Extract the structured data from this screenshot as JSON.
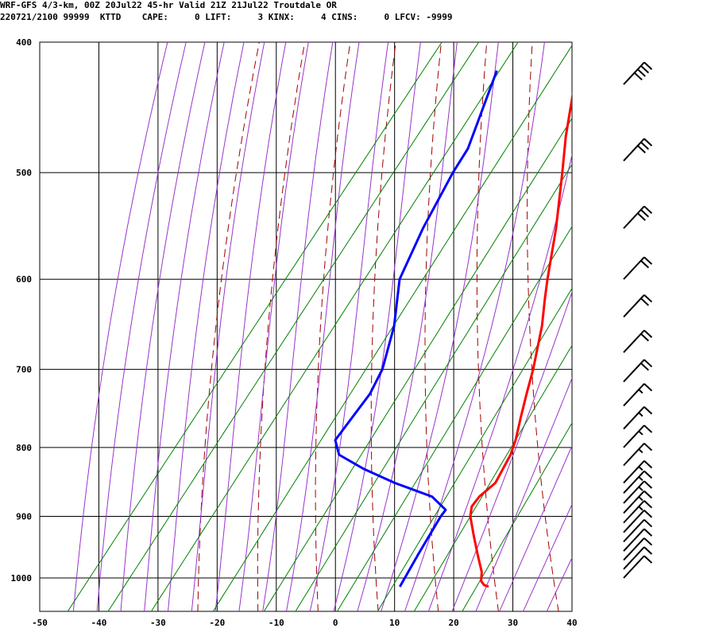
{
  "header": {
    "line1": "WRF-GFS 4/3-km, 00Z 20Jul22 45-hr Valid 21Z 21Jul22 Troutdale OR",
    "line2": "220721/2100 99999  KTTD    CAPE:     0 LIFT:     3 KINX:     4 CINS:     0 LFCV: -9999"
  },
  "colors": {
    "temperature": "#ff0000",
    "dewpoint": "#0000ff",
    "dry_adiabat": "#a00000",
    "moist_adiabat": "#9933cc",
    "mixing_ratio": "#008000",
    "grid": "#000000"
  },
  "chart_data": {
    "type": "line",
    "title": "",
    "xlabel": "",
    "ylabel": "",
    "x_axis": {
      "range": [
        -50,
        40
      ],
      "ticks": [
        "-50",
        "-40",
        "-30",
        "-20",
        "-10",
        "0",
        "10",
        "20",
        "30",
        "40"
      ]
    },
    "y_axis": {
      "scale": "log pressure",
      "range_hpa": [
        1050,
        400
      ],
      "ticks": [
        "400",
        "500",
        "600",
        "700",
        "800",
        "900",
        "1000"
      ]
    },
    "grid": true,
    "skew": "skew-T log-P",
    "series": [
      {
        "key": "temperature",
        "color": "#ff0000",
        "points": [
          {
            "p": 1015,
            "t": 27
          },
          {
            "p": 1012,
            "t": 26
          },
          {
            "p": 1005,
            "t": 25
          },
          {
            "p": 990,
            "t": 24
          },
          {
            "p": 960,
            "t": 21
          },
          {
            "p": 930,
            "t": 18
          },
          {
            "p": 900,
            "t": 15
          },
          {
            "p": 885,
            "t": 14
          },
          {
            "p": 870,
            "t": 14
          },
          {
            "p": 850,
            "t": 15
          },
          {
            "p": 830,
            "t": 14.5
          },
          {
            "p": 810,
            "t": 14
          },
          {
            "p": 790,
            "t": 13
          },
          {
            "p": 760,
            "t": 11
          },
          {
            "p": 730,
            "t": 9
          },
          {
            "p": 700,
            "t": 7
          },
          {
            "p": 650,
            "t": 3
          },
          {
            "p": 620,
            "t": 0
          },
          {
            "p": 600,
            "t": -2
          },
          {
            "p": 550,
            "t": -7
          },
          {
            "p": 500,
            "t": -13
          },
          {
            "p": 470,
            "t": -17
          },
          {
            "p": 420,
            "t": -23.5
          }
        ]
      },
      {
        "key": "dewpoint",
        "color": "#0000ff",
        "points": [
          {
            "p": 1015,
            "t": 12
          },
          {
            "p": 960,
            "t": 11
          },
          {
            "p": 900,
            "t": 10
          },
          {
            "p": 890,
            "t": 10
          },
          {
            "p": 870,
            "t": 6
          },
          {
            "p": 850,
            "t": -2
          },
          {
            "p": 830,
            "t": -9
          },
          {
            "p": 810,
            "t": -15
          },
          {
            "p": 790,
            "t": -17.5
          },
          {
            "p": 760,
            "t": -17.5
          },
          {
            "p": 730,
            "t": -17.5
          },
          {
            "p": 700,
            "t": -18.5
          },
          {
            "p": 650,
            "t": -22
          },
          {
            "p": 600,
            "t": -27
          },
          {
            "p": 550,
            "t": -29.5
          },
          {
            "p": 500,
            "t": -31.5
          },
          {
            "p": 480,
            "t": -32
          },
          {
            "p": 420,
            "t": -37
          }
        ]
      }
    ],
    "wind_barbs": [
      {
        "p": 1000,
        "flags": 0,
        "barbs": 1,
        "half": false
      },
      {
        "p": 985,
        "flags": 0,
        "barbs": 1,
        "half": false
      },
      {
        "p": 970,
        "flags": 0,
        "barbs": 1,
        "half": false
      },
      {
        "p": 955,
        "flags": 0,
        "barbs": 1,
        "half": false
      },
      {
        "p": 940,
        "flags": 0,
        "barbs": 1,
        "half": false
      },
      {
        "p": 925,
        "flags": 0,
        "barbs": 1,
        "half": false
      },
      {
        "p": 910,
        "flags": 0,
        "barbs": 1,
        "half": true
      },
      {
        "p": 895,
        "flags": 0,
        "barbs": 1,
        "half": true
      },
      {
        "p": 880,
        "flags": 0,
        "barbs": 1,
        "half": true
      },
      {
        "p": 865,
        "flags": 0,
        "barbs": 1,
        "half": true
      },
      {
        "p": 850,
        "flags": 0,
        "barbs": 1,
        "half": true
      },
      {
        "p": 825,
        "flags": 0,
        "barbs": 1,
        "half": true
      },
      {
        "p": 800,
        "flags": 0,
        "barbs": 1,
        "half": true
      },
      {
        "p": 775,
        "flags": 0,
        "barbs": 1,
        "half": true
      },
      {
        "p": 745,
        "flags": 0,
        "barbs": 1,
        "half": true
      },
      {
        "p": 715,
        "flags": 0,
        "barbs": 2,
        "half": false
      },
      {
        "p": 680,
        "flags": 0,
        "barbs": 2,
        "half": false
      },
      {
        "p": 640,
        "flags": 0,
        "barbs": 2,
        "half": false
      },
      {
        "p": 600,
        "flags": 0,
        "barbs": 2,
        "half": false
      },
      {
        "p": 550,
        "flags": 0,
        "barbs": 3,
        "half": false
      },
      {
        "p": 490,
        "flags": 0,
        "barbs": 3,
        "half": false
      },
      {
        "p": 430,
        "flags": 0,
        "barbs": 4,
        "half": false
      }
    ]
  }
}
